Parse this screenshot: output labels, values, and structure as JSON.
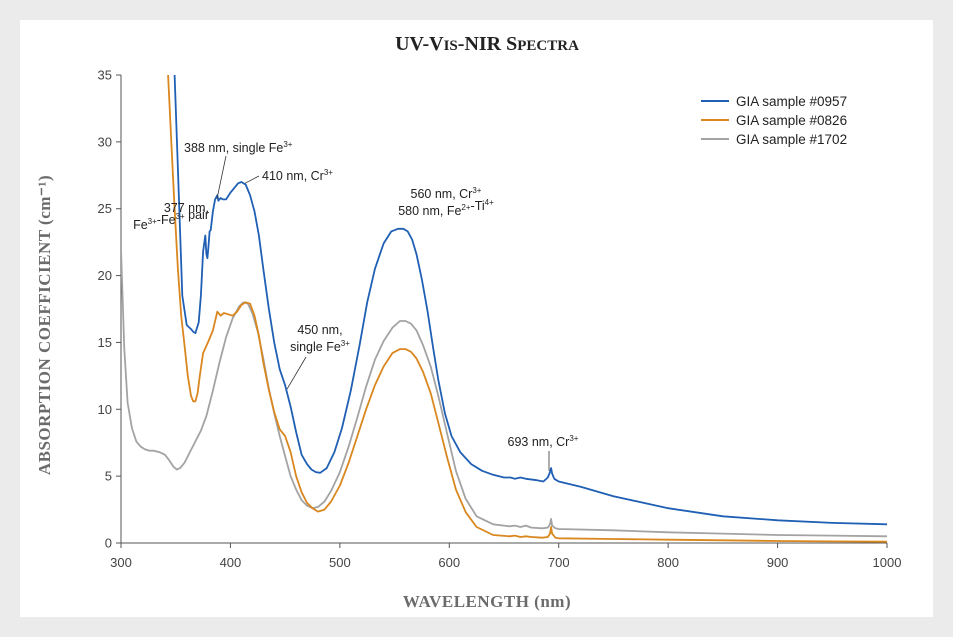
{
  "chart_data": {
    "type": "line",
    "title": "UV-Vis-NIR Spectra",
    "xlabel": "WAVELENGTH (nm)",
    "ylabel": "ABSORPTION COEFFICIENT (cm⁻¹)",
    "xlim": [
      300,
      1000
    ],
    "ylim": [
      0,
      35
    ],
    "xticks": [
      300,
      400,
      500,
      600,
      700,
      800,
      900,
      1000
    ],
    "yticks": [
      0,
      5,
      10,
      15,
      20,
      25,
      30,
      35
    ],
    "legend_position": "top-right",
    "grid": false,
    "series": [
      {
        "name": "GIA sample #0957",
        "color": "#1f5fb4",
        "x": [
          349,
          352,
          356,
          360,
          364,
          366,
          368,
          371,
          373,
          375,
          377,
          378,
          379,
          380,
          381,
          382,
          384,
          386,
          388,
          389,
          391,
          393,
          396,
          400,
          404,
          407,
          410,
          414,
          418,
          422,
          426,
          430,
          435,
          440,
          445,
          450,
          455,
          460,
          465,
          470,
          474,
          478,
          482,
          488,
          495,
          502,
          510,
          518,
          525,
          532,
          540,
          547,
          553,
          558,
          562,
          566,
          570,
          575,
          580,
          585,
          590,
          596,
          602,
          610,
          620,
          630,
          640,
          650,
          656,
          660,
          665,
          670,
          680,
          686,
          690,
          692,
          693,
          694,
          696,
          700,
          720,
          750,
          800,
          850,
          900,
          950,
          1000
        ],
        "y": [
          35,
          28,
          18.5,
          16.3,
          16.0,
          15.8,
          15.7,
          16.5,
          18.5,
          21.8,
          23.0,
          21.6,
          21.3,
          22.2,
          23.3,
          23.4,
          24.8,
          25.7,
          26.0,
          25.6,
          25.8,
          25.7,
          25.7,
          26.2,
          26.6,
          26.9,
          27.0,
          26.8,
          26.0,
          24.8,
          23.0,
          20.5,
          17.6,
          15.0,
          13.0,
          11.8,
          10.2,
          8.3,
          6.6,
          5.9,
          5.5,
          5.3,
          5.25,
          5.6,
          6.8,
          8.6,
          11.4,
          14.8,
          18.0,
          20.5,
          22.4,
          23.3,
          23.5,
          23.5,
          23.3,
          22.7,
          21.6,
          19.7,
          17.4,
          14.7,
          12.2,
          9.7,
          8.0,
          6.8,
          5.9,
          5.4,
          5.1,
          4.9,
          4.9,
          4.8,
          4.9,
          4.8,
          4.7,
          4.6,
          4.9,
          5.3,
          5.6,
          5.2,
          4.8,
          4.6,
          4.2,
          3.5,
          2.6,
          2.0,
          1.7,
          1.5,
          1.4
        ]
      },
      {
        "name": "GIA sample #0826",
        "color": "#d9871e",
        "x": [
          343,
          346,
          349,
          352,
          355,
          358,
          361,
          364,
          366,
          368,
          370,
          372,
          375,
          380,
          384,
          388,
          391,
          394,
          398,
          402,
          406,
          410,
          414,
          418,
          422,
          426,
          430,
          435,
          440,
          445,
          450,
          455,
          460,
          465,
          470,
          475,
          480,
          486,
          492,
          500,
          508,
          516,
          524,
          532,
          540,
          548,
          555,
          560,
          565,
          570,
          576,
          583,
          590,
          598,
          606,
          615,
          625,
          640,
          655,
          660,
          665,
          670,
          675,
          685,
          690,
          692,
          693,
          694,
          697,
          700,
          750,
          800,
          850,
          900,
          950,
          1000
        ],
        "y": [
          35,
          30,
          25,
          20.5,
          17.0,
          14.8,
          12.5,
          11.0,
          10.6,
          10.6,
          11.2,
          12.5,
          14.2,
          15.1,
          15.9,
          17.3,
          17.0,
          17.2,
          17.1,
          17.0,
          17.3,
          17.8,
          18.0,
          17.9,
          17.0,
          15.5,
          13.5,
          11.5,
          9.8,
          8.5,
          8.0,
          6.8,
          5.0,
          3.8,
          3.0,
          2.6,
          2.35,
          2.5,
          3.1,
          4.3,
          6.0,
          8.0,
          10.0,
          11.8,
          13.2,
          14.2,
          14.5,
          14.5,
          14.3,
          13.8,
          12.8,
          11.2,
          9.0,
          6.4,
          4.0,
          2.3,
          1.2,
          0.6,
          0.5,
          0.55,
          0.45,
          0.5,
          0.45,
          0.4,
          0.45,
          0.7,
          1.2,
          0.7,
          0.4,
          0.35,
          0.3,
          0.25,
          0.2,
          0.15,
          0.12,
          0.1
        ]
      },
      {
        "name": "GIA sample #1702",
        "color": "#a3a3a3",
        "x": [
          300,
          303,
          306,
          310,
          314,
          318,
          322,
          326,
          330,
          335,
          340,
          344,
          348,
          351,
          354,
          358,
          363,
          368,
          373,
          378,
          384,
          390,
          396,
          402,
          408,
          412,
          416,
          420,
          425,
          430,
          435,
          440,
          445,
          450,
          455,
          460,
          465,
          470,
          475,
          480,
          486,
          492,
          500,
          508,
          516,
          524,
          532,
          540,
          548,
          555,
          560,
          565,
          570,
          576,
          583,
          590,
          598,
          606,
          615,
          625,
          640,
          655,
          660,
          665,
          670,
          675,
          685,
          690,
          692,
          693,
          694,
          697,
          700,
          750,
          800,
          850,
          900,
          950,
          1000
        ],
        "y": [
          22,
          14.5,
          10.5,
          8.6,
          7.6,
          7.2,
          7.0,
          6.9,
          6.9,
          6.8,
          6.6,
          6.2,
          5.7,
          5.5,
          5.6,
          6.0,
          6.8,
          7.6,
          8.4,
          9.5,
          11.4,
          13.5,
          15.4,
          16.8,
          17.7,
          18.0,
          17.9,
          17.2,
          15.8,
          13.8,
          11.6,
          9.7,
          8.0,
          6.5,
          5.0,
          4.0,
          3.2,
          2.8,
          2.6,
          2.7,
          3.1,
          3.9,
          5.3,
          7.2,
          9.4,
          11.7,
          13.7,
          15.1,
          16.1,
          16.6,
          16.6,
          16.4,
          15.9,
          14.8,
          13.2,
          11.0,
          8.2,
          5.4,
          3.3,
          2.0,
          1.4,
          1.25,
          1.3,
          1.2,
          1.3,
          1.15,
          1.1,
          1.15,
          1.4,
          1.8,
          1.3,
          1.1,
          1.05,
          0.95,
          0.8,
          0.7,
          0.6,
          0.55,
          0.5
        ]
      }
    ],
    "annotations": [
      {
        "id": "a388",
        "label": "388 nm, single Fe",
        "sup": "3+"
      },
      {
        "id": "a410",
        "label": "410 nm, Cr",
        "sup": "3+"
      },
      {
        "id": "a377a",
        "label": "377 nm,"
      },
      {
        "id": "a377b",
        "label": "Fe",
        "sup": "3+",
        "label2": "-Fe",
        "sup2": "3+",
        "label3": " pair"
      },
      {
        "id": "a560",
        "label": "560 nm, Cr",
        "sup": "3+"
      },
      {
        "id": "a580",
        "label": "580 nm, Fe",
        "sup": "2+",
        "label2": "-Ti",
        "sup2": "4+"
      },
      {
        "id": "a450a",
        "label": "450 nm,"
      },
      {
        "id": "a450b",
        "label": "single Fe",
        "sup": "3+"
      },
      {
        "id": "a693",
        "label": "693 nm, Cr",
        "sup": "3+"
      }
    ]
  }
}
